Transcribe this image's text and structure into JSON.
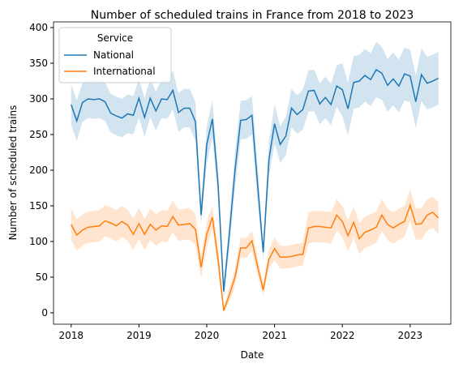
{
  "chart_data": {
    "type": "line",
    "title": "Number of scheduled trains in France from 2018 to 2023",
    "xlabel": "Date",
    "ylabel": "Number of scheduled trains",
    "xlim": [
      2017.74,
      2023.6
    ],
    "xticks": [
      2018,
      2019,
      2020,
      2021,
      2022,
      2023
    ],
    "ylim": [
      -16,
      408
    ],
    "yticks": [
      0,
      50,
      100,
      150,
      200,
      250,
      300,
      350,
      400
    ],
    "legend": {
      "title": "Service",
      "loc": "upper left"
    },
    "x": [
      2018,
      2018.083,
      2018.167,
      2018.25,
      2018.333,
      2018.417,
      2018.5,
      2018.583,
      2018.667,
      2018.75,
      2018.833,
      2018.917,
      2019,
      2019.083,
      2019.167,
      2019.25,
      2019.333,
      2019.417,
      2019.5,
      2019.583,
      2019.667,
      2019.75,
      2019.833,
      2019.917,
      2020,
      2020.083,
      2020.167,
      2020.25,
      2020.333,
      2020.417,
      2020.5,
      2020.583,
      2020.667,
      2020.75,
      2020.833,
      2020.917,
      2021,
      2021.083,
      2021.167,
      2021.25,
      2021.333,
      2021.417,
      2021.5,
      2021.583,
      2021.667,
      2021.75,
      2021.833,
      2021.917,
      2022,
      2022.083,
      2022.167,
      2022.25,
      2022.333,
      2022.417,
      2022.5,
      2022.583,
      2022.667,
      2022.75,
      2022.833,
      2022.917,
      2023,
      2023.083,
      2023.167,
      2023.25,
      2023.333,
      2023.417
    ],
    "series": [
      {
        "name": "National",
        "color": "#1f77b4",
        "values": [
          292,
          269,
          295,
          300,
          299,
          300,
          296,
          280,
          276,
          273,
          279,
          277,
          301,
          274,
          301,
          283,
          300,
          299,
          312,
          281,
          287,
          287,
          268,
          137,
          236,
          272,
          180,
          30,
          110,
          200,
          270,
          271,
          277,
          180,
          85,
          215,
          265,
          236,
          248,
          287,
          278,
          285,
          311,
          312,
          293,
          302,
          292,
          318,
          313,
          286,
          323,
          325,
          333,
          327,
          341,
          336,
          319,
          328,
          318,
          335,
          332,
          296,
          334,
          322,
          325,
          329
        ],
        "upper": [
          320,
          298,
          322,
          327,
          326,
          327,
          323,
          307,
          303,
          300,
          306,
          304,
          328,
          301,
          328,
          310,
          327,
          326,
          339,
          308,
          314,
          314,
          295,
          150,
          262,
          298,
          200,
          40,
          130,
          225,
          297,
          298,
          304,
          205,
          95,
          240,
          292,
          262,
          275,
          314,
          305,
          313,
          340,
          341,
          322,
          331,
          321,
          347,
          350,
          323,
          360,
          362,
          370,
          364,
          380,
          373,
          356,
          365,
          355,
          372,
          369,
          333,
          371,
          359,
          362,
          366
        ],
        "lower": [
          264,
          241,
          268,
          273,
          272,
          273,
          269,
          253,
          249,
          246,
          252,
          250,
          274,
          247,
          274,
          256,
          273,
          272,
          285,
          254,
          260,
          260,
          241,
          124,
          210,
          246,
          160,
          20,
          90,
          175,
          243,
          244,
          250,
          155,
          75,
          190,
          238,
          210,
          221,
          260,
          251,
          257,
          282,
          283,
          264,
          273,
          263,
          289,
          276,
          249,
          286,
          288,
          296,
          290,
          302,
          299,
          282,
          291,
          281,
          298,
          295,
          259,
          297,
          285,
          288,
          292
        ]
      },
      {
        "name": "International",
        "color": "#ff7f0e",
        "values": [
          124,
          109,
          116,
          120,
          121,
          122,
          129,
          126,
          122,
          128,
          123,
          110,
          125,
          110,
          124,
          116,
          122,
          121,
          135,
          123,
          124,
          125,
          117,
          64,
          110,
          134,
          75,
          3,
          25,
          50,
          91,
          91,
          101,
          65,
          32,
          75,
          90,
          78,
          78,
          79,
          81,
          82,
          119,
          121,
          121,
          120,
          119,
          137,
          128,
          108,
          127,
          104,
          113,
          116,
          120,
          137,
          124,
          119,
          124,
          128,
          151,
          124,
          125,
          137,
          141,
          133
        ],
        "upper": [
          146,
          131,
          138,
          142,
          143,
          144,
          151,
          148,
          144,
          150,
          145,
          132,
          147,
          132,
          146,
          138,
          144,
          143,
          157,
          145,
          146,
          147,
          139,
          80,
          128,
          150,
          90,
          8,
          35,
          62,
          105,
          105,
          115,
          78,
          40,
          88,
          106,
          94,
          94,
          95,
          97,
          98,
          141,
          143,
          143,
          142,
          141,
          159,
          150,
          130,
          149,
          126,
          135,
          138,
          142,
          159,
          146,
          141,
          146,
          150,
          173,
          146,
          147,
          159,
          163,
          155
        ],
        "lower": [
          102,
          87,
          94,
          98,
          99,
          100,
          107,
          104,
          100,
          106,
          101,
          88,
          103,
          88,
          102,
          94,
          100,
          99,
          113,
          101,
          102,
          103,
          95,
          48,
          92,
          118,
          60,
          0,
          15,
          38,
          77,
          77,
          87,
          52,
          24,
          62,
          74,
          62,
          62,
          63,
          65,
          66,
          97,
          99,
          99,
          98,
          97,
          115,
          106,
          86,
          105,
          82,
          91,
          94,
          98,
          115,
          102,
          97,
          102,
          106,
          129,
          102,
          103,
          115,
          119,
          111
        ]
      }
    ]
  }
}
